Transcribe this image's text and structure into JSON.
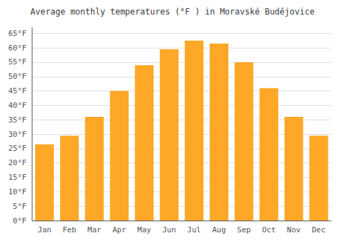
{
  "chart_data": {
    "type": "bar",
    "title": "Average monthly temperatures (°F ) in Moravské Budějovice",
    "categories": [
      "Jan",
      "Feb",
      "Mar",
      "Apr",
      "May",
      "Jun",
      "Jul",
      "Aug",
      "Sep",
      "Oct",
      "Nov",
      "Dec"
    ],
    "values": [
      26.5,
      29.5,
      36.0,
      45.0,
      54.0,
      59.5,
      62.5,
      61.5,
      55.0,
      46.0,
      36.0,
      29.5
    ],
    "color": "#FFA726",
    "ylim": [
      0,
      67
    ],
    "yticks": [
      {
        "value": 0,
        "label": "0°F"
      },
      {
        "value": 5,
        "label": "5°F"
      },
      {
        "value": 10,
        "label": "10°F"
      },
      {
        "value": 15,
        "label": "15°F"
      },
      {
        "value": 20,
        "label": "20°F"
      },
      {
        "value": 25,
        "label": "25°F"
      },
      {
        "value": 30,
        "label": "30°F"
      },
      {
        "value": 35,
        "label": "35°F"
      },
      {
        "value": 40,
        "label": "40°F"
      },
      {
        "value": 45,
        "label": "45°F"
      },
      {
        "value": 50,
        "label": "50°F"
      },
      {
        "value": 55,
        "label": "55°F"
      },
      {
        "value": 60,
        "label": "60°F"
      },
      {
        "value": 65,
        "label": "65°F"
      }
    ],
    "grid": true
  }
}
